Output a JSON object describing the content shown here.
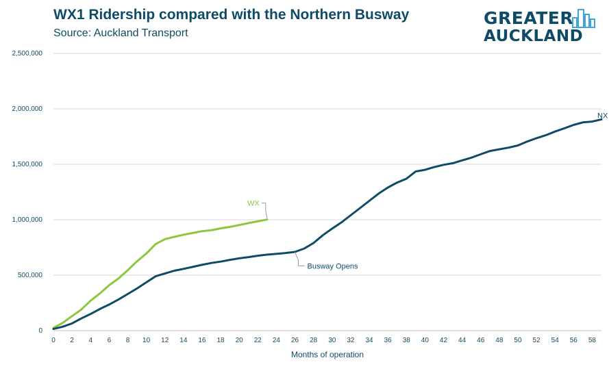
{
  "chart_data": {
    "type": "line",
    "title": "WX1 Ridership compared with the Northern Busway",
    "subtitle": "Source: Auckland Transport",
    "xlabel": "Months of operation",
    "ylabel": "",
    "xlim": [
      0,
      59
    ],
    "ylim": [
      0,
      2500000
    ],
    "x_ticks": [
      0,
      2,
      4,
      6,
      8,
      10,
      12,
      14,
      16,
      18,
      20,
      22,
      24,
      26,
      28,
      30,
      32,
      34,
      36,
      38,
      40,
      42,
      44,
      46,
      48,
      50,
      52,
      54,
      56,
      58
    ],
    "y_ticks": [
      0,
      500000,
      1000000,
      1500000,
      2000000,
      2500000
    ],
    "y_tick_labels": [
      "0",
      "500,000",
      "1,000,000",
      "1,500,000",
      "2,000,000",
      "2,500,000"
    ],
    "grid": true,
    "colors": {
      "WX": "#8dc63f",
      "NX": "#0f4a66",
      "grid": "#d9d9d9",
      "axis": "#bfbfbf"
    },
    "series": [
      {
        "name": "WX",
        "label": "WX",
        "x": [
          0,
          1,
          2,
          3,
          4,
          5,
          6,
          7,
          8,
          9,
          10,
          11,
          12,
          13,
          14,
          15,
          16,
          17,
          18,
          19,
          20,
          21,
          22,
          23
        ],
        "values": [
          25000,
          70000,
          130000,
          190000,
          270000,
          335000,
          410000,
          470000,
          545000,
          625000,
          695000,
          780000,
          825000,
          845000,
          865000,
          880000,
          897000,
          905000,
          922000,
          935000,
          952000,
          970000,
          985000,
          1002000
        ]
      },
      {
        "name": "NX",
        "label": "NX",
        "x": [
          0,
          1,
          2,
          3,
          4,
          5,
          6,
          7,
          8,
          9,
          10,
          11,
          12,
          13,
          14,
          15,
          16,
          17,
          18,
          19,
          20,
          21,
          22,
          23,
          24,
          25,
          26,
          27,
          28,
          29,
          30,
          31,
          32,
          33,
          34,
          35,
          36,
          37,
          38,
          39,
          40,
          41,
          42,
          43,
          44,
          45,
          46,
          47,
          48,
          49,
          50,
          51,
          52,
          53,
          54,
          55,
          56,
          57,
          58,
          59
        ],
        "values": [
          15000,
          35000,
          65000,
          110000,
          150000,
          195000,
          235000,
          280000,
          330000,
          380000,
          435000,
          490000,
          515000,
          540000,
          557000,
          575000,
          593000,
          610000,
          622000,
          638000,
          652000,
          663000,
          675000,
          685000,
          692000,
          700000,
          710000,
          740000,
          790000,
          860000,
          920000,
          975000,
          1040000,
          1105000,
          1170000,
          1235000,
          1290000,
          1335000,
          1370000,
          1435000,
          1450000,
          1475000,
          1495000,
          1510000,
          1535000,
          1560000,
          1590000,
          1620000,
          1635000,
          1650000,
          1670000,
          1705000,
          1735000,
          1762000,
          1795000,
          1825000,
          1855000,
          1878000,
          1885000,
          1905000
        ]
      }
    ],
    "annotations": [
      {
        "text": "Busway Opens",
        "x": 26,
        "y": 720000
      }
    ]
  },
  "brand": {
    "line1": "GREATER",
    "line2": "AUCKLAND"
  }
}
